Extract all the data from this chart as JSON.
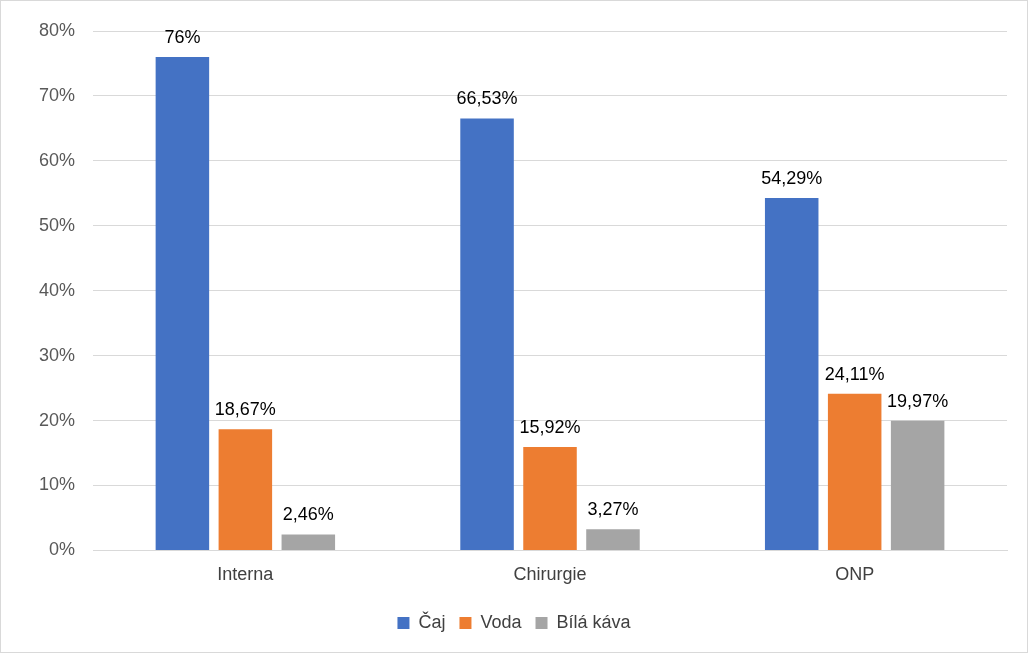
{
  "chart_data": {
    "type": "bar",
    "categories": [
      "Interna",
      "Chirurgie",
      "ONP"
    ],
    "series": [
      {
        "name": "Čaj",
        "color": "#4472c4",
        "values": [
          76,
          66.53,
          54.29
        ],
        "value_labels": [
          "76%",
          "66,53%",
          "54,29%"
        ]
      },
      {
        "name": "Voda",
        "color": "#ed7d31",
        "values": [
          18.67,
          15.92,
          24.11
        ],
        "value_labels": [
          "18,67%",
          "15,92%",
          "24,11%"
        ]
      },
      {
        "name": "Bílá káva",
        "color": "#a5a5a5",
        "values": [
          2.46,
          3.27,
          19.97
        ],
        "value_labels": [
          "2,46%",
          "3,27%",
          "19,97%"
        ]
      }
    ],
    "ylim": [
      0,
      80
    ],
    "yticks": [
      {
        "value": 0,
        "label": "0%"
      },
      {
        "value": 10,
        "label": "10%"
      },
      {
        "value": 20,
        "label": "20%"
      },
      {
        "value": 30,
        "label": "30%"
      },
      {
        "value": 40,
        "label": "40%"
      },
      {
        "value": 50,
        "label": "50%"
      },
      {
        "value": 60,
        "label": "60%"
      },
      {
        "value": 70,
        "label": "70%"
      },
      {
        "value": 80,
        "label": "80%"
      }
    ],
    "grid": "y",
    "legend": "bottom"
  }
}
